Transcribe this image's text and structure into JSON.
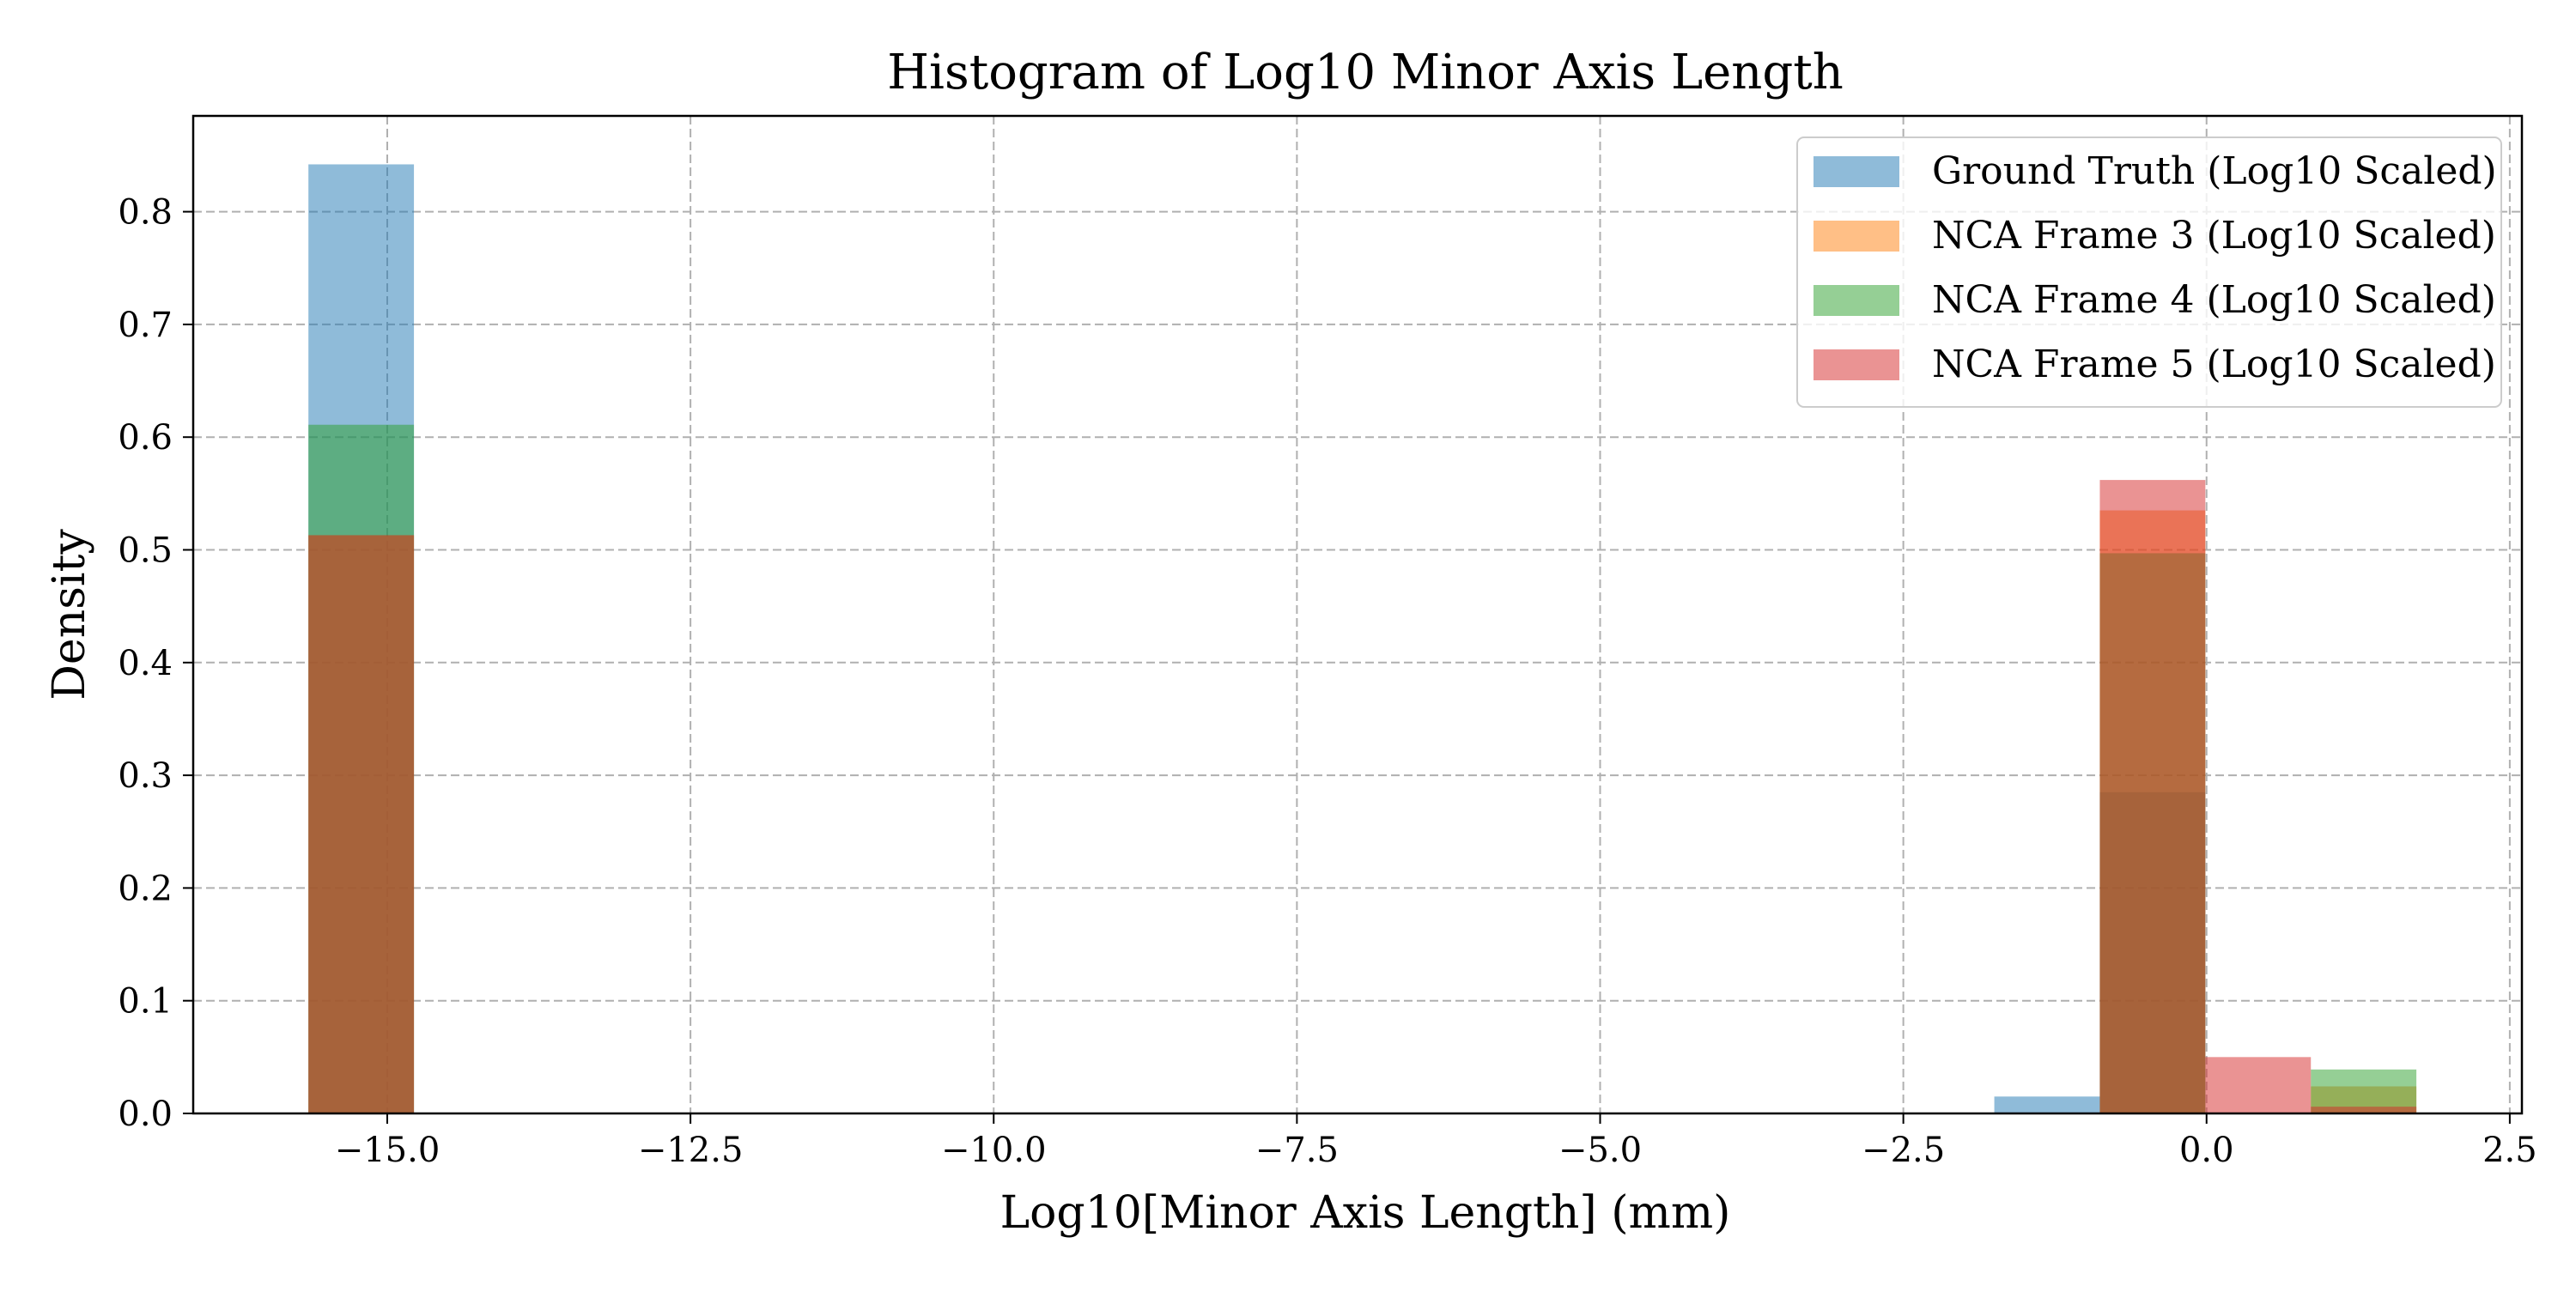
{
  "chart_data": {
    "type": "bar",
    "title": "Histogram of Log10 Minor Axis Length",
    "xlabel": "Log10[Minor Axis Length] (mm)",
    "ylabel": "Density",
    "xlim": [
      -16.6,
      2.6
    ],
    "ylim": [
      0,
      0.885
    ],
    "xticks": [
      -15.0,
      -12.5,
      -10.0,
      -7.5,
      -5.0,
      -2.5,
      0.0,
      2.5
    ],
    "xtick_labels": [
      "−15.0",
      "−12.5",
      "−10.0",
      "−7.5",
      "−5.0",
      "−2.5",
      "0.0",
      "2.5"
    ],
    "yticks": [
      0.0,
      0.1,
      0.2,
      0.3,
      0.4,
      0.5,
      0.6,
      0.7,
      0.8
    ],
    "ytick_labels": [
      "0.0",
      "0.1",
      "0.2",
      "0.3",
      "0.4",
      "0.5",
      "0.6",
      "0.7",
      "0.8"
    ],
    "grid": true,
    "legend_position": "top-right",
    "series": [
      {
        "name": "Ground Truth (Log10 Scaled)",
        "color": "#1f77b4",
        "bins": [
          {
            "x0": -15.65,
            "x1": -14.78,
            "density": 0.842
          },
          {
            "x0": -1.75,
            "x1": -0.88,
            "density": 0.015
          },
          {
            "x0": -0.88,
            "x1": -0.01,
            "density": 0.285
          }
        ]
      },
      {
        "name": "NCA Frame 3 (Log10 Scaled)",
        "color": "#ff7f0e",
        "bins": [
          {
            "x0": -15.65,
            "x1": -14.78,
            "density": 0.513
          },
          {
            "x0": -0.88,
            "x1": -0.01,
            "density": 0.535
          },
          {
            "x0": 0.86,
            "x1": 1.73,
            "density": 0.024
          }
        ]
      },
      {
        "name": "NCA Frame 4 (Log10 Scaled)",
        "color": "#2ca02c",
        "bins": [
          {
            "x0": -15.65,
            "x1": -14.78,
            "density": 0.611
          },
          {
            "x0": -0.88,
            "x1": -0.01,
            "density": 0.497
          },
          {
            "x0": 0.86,
            "x1": 1.73,
            "density": 0.039
          }
        ]
      },
      {
        "name": "NCA Frame 5 (Log10 Scaled)",
        "color": "#d62728",
        "bins": [
          {
            "x0": -15.65,
            "x1": -14.78,
            "density": 0.513
          },
          {
            "x0": -0.88,
            "x1": -0.01,
            "density": 0.562
          },
          {
            "x0": -0.01,
            "x1": 0.86,
            "density": 0.05
          },
          {
            "x0": 0.86,
            "x1": 1.73,
            "density": 0.006
          }
        ]
      }
    ],
    "bar_alpha": 0.5
  }
}
